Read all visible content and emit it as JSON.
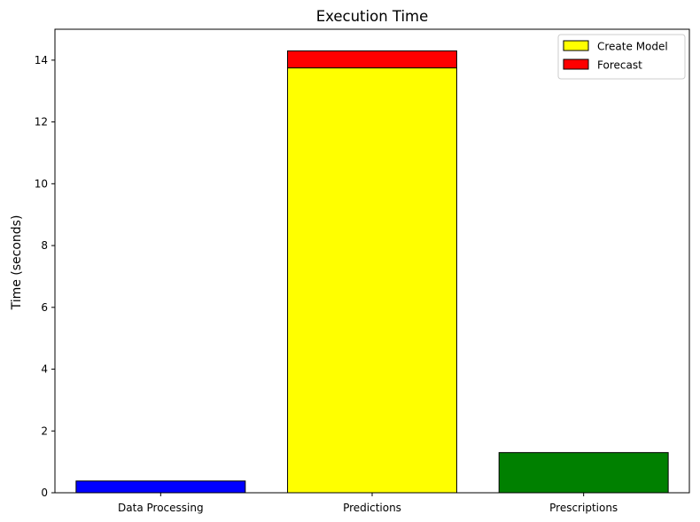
{
  "chart_data": {
    "type": "bar",
    "stacked": true,
    "title": "Execution Time",
    "xlabel": "",
    "ylabel": "Time (seconds)",
    "ylim": [
      0,
      15
    ],
    "yticks": [
      0,
      2,
      4,
      6,
      8,
      10,
      12,
      14
    ],
    "grid": false,
    "legend_position": "top-right",
    "categories": [
      "Data Processing",
      "Predictions",
      "Prescriptions"
    ],
    "bars": [
      {
        "category": "Data Processing",
        "segments": [
          {
            "value": 0.38,
            "color": "#0000ff"
          }
        ]
      },
      {
        "category": "Predictions",
        "segments": [
          {
            "series": "Create Model",
            "value": 13.75,
            "color": "#ffff00"
          },
          {
            "series": "Forecast",
            "value": 0.55,
            "color": "#ff0000"
          }
        ]
      },
      {
        "category": "Prescriptions",
        "segments": [
          {
            "value": 1.3,
            "color": "#008000"
          }
        ]
      }
    ],
    "legend": [
      {
        "name": "Create Model",
        "color": "#ffff00"
      },
      {
        "name": "Forecast",
        "color": "#ff0000"
      }
    ]
  }
}
